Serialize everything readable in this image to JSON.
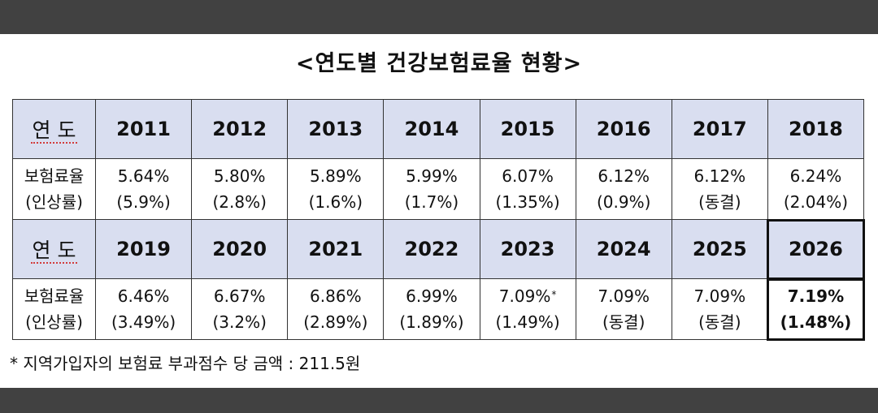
{
  "title": "<연도별 건강보험료율 현황>",
  "labels": {
    "year": "연 도",
    "rate_line1": "보험료율",
    "rate_line2": "(인상률)"
  },
  "row1": {
    "years": [
      "2011",
      "2012",
      "2013",
      "2014",
      "2015",
      "2016",
      "2017",
      "2018"
    ],
    "rates": [
      "5.64%",
      "5.80%",
      "5.89%",
      "5.99%",
      "6.07%",
      "6.12%",
      "6.12%",
      "6.24%"
    ],
    "changes": [
      "(5.9%)",
      "(2.8%)",
      "(1.6%)",
      "(1.7%)",
      "(1.35%)",
      "(0.9%)",
      "(동결)",
      "(2.04%)"
    ]
  },
  "row2": {
    "years": [
      "2019",
      "2020",
      "2021",
      "2022",
      "2023",
      "2024",
      "2025",
      "2026"
    ],
    "rates": [
      "6.46%",
      "6.67%",
      "6.86%",
      "6.99%",
      "7.09%",
      "7.09%",
      "7.09%",
      "7.19%"
    ],
    "changes": [
      "(3.49%)",
      "(3.2%)",
      "(2.89%)",
      "(1.89%)",
      "(1.49%)",
      "(동결)",
      "(동결)",
      "(1.48%)"
    ],
    "star_mark": "*"
  },
  "footnote": "*  지역가입자의 보험료 부과점수 당 금액 :  211.5원",
  "colors": {
    "header_bg": "#d9def0",
    "frame": "#414141"
  }
}
